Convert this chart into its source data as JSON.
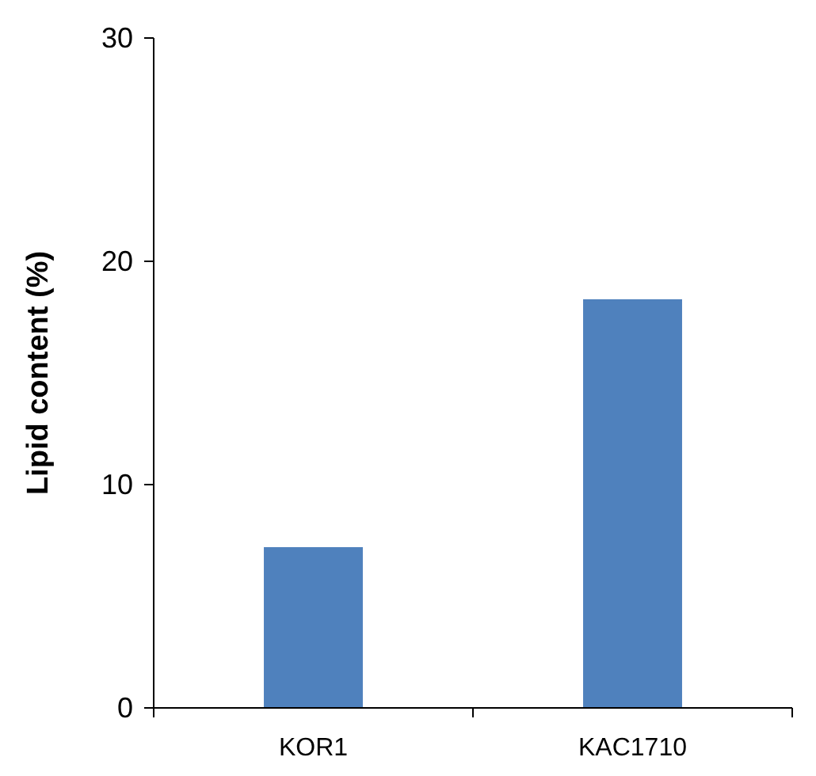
{
  "chart_data": {
    "type": "bar",
    "ylabel": "Lipid content (%)",
    "categories": [
      "KOR1",
      "KAC1710"
    ],
    "values": [
      7.2,
      18.3
    ],
    "color": "#4f81bd",
    "ylim": [
      0,
      30
    ],
    "yticks": [
      0,
      10,
      20,
      30
    ]
  }
}
